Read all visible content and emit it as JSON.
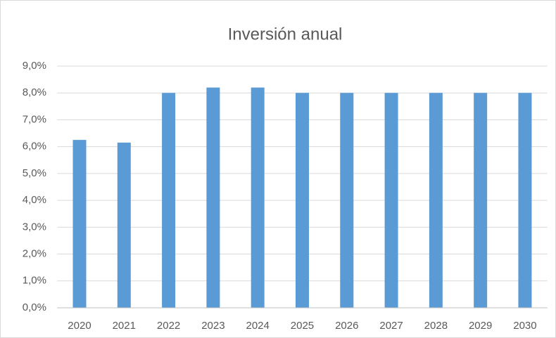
{
  "chart_data": {
    "type": "bar",
    "title": "Inversión anual",
    "categories": [
      "2020",
      "2021",
      "2022",
      "2023",
      "2024",
      "2025",
      "2026",
      "2027",
      "2028",
      "2029",
      "2030"
    ],
    "values": [
      6.25,
      6.15,
      8.0,
      8.2,
      8.2,
      8.0,
      8.0,
      8.0,
      8.0,
      8.0,
      8.0
    ],
    "color": "#5b9bd5",
    "ylim": [
      0,
      9
    ],
    "yticks": [
      {
        "value": 0,
        "label": "0,0%"
      },
      {
        "value": 1,
        "label": "1,0%"
      },
      {
        "value": 2,
        "label": "2,0%"
      },
      {
        "value": 3,
        "label": "3,0%"
      },
      {
        "value": 4,
        "label": "4,0%"
      },
      {
        "value": 5,
        "label": "5,0%"
      },
      {
        "value": 6,
        "label": "6,0%"
      },
      {
        "value": 7,
        "label": "7,0%"
      },
      {
        "value": 8,
        "label": "8,0%"
      },
      {
        "value": 9,
        "label": "9,0%"
      }
    ],
    "grid": true
  }
}
